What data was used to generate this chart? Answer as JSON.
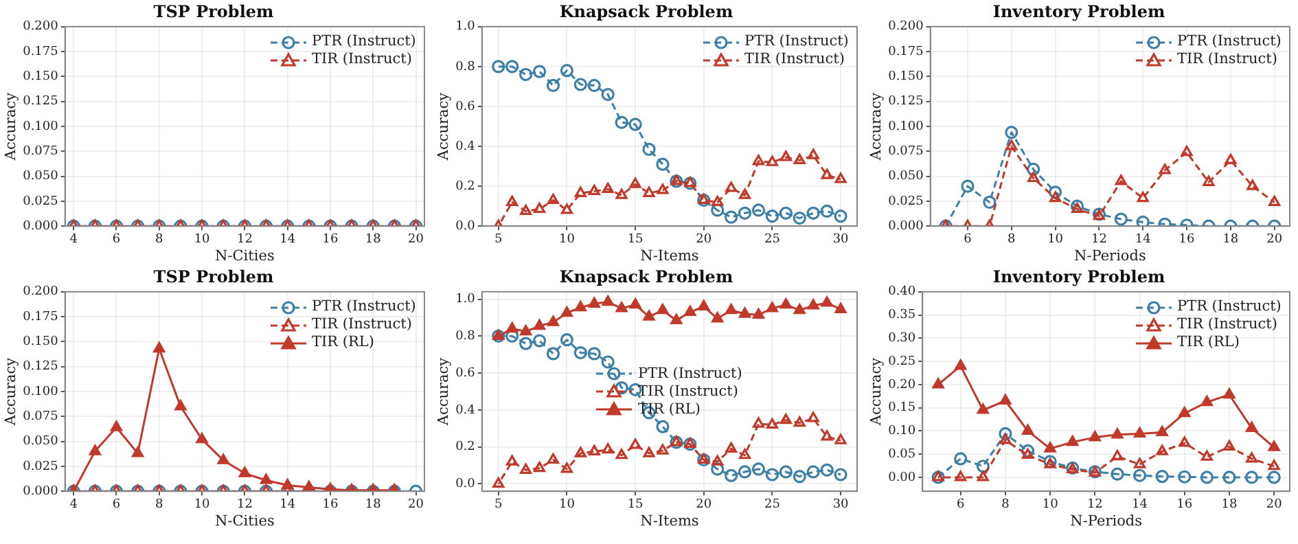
{
  "chart_data": [
    {
      "type": "line",
      "title": "TSP Problem",
      "xlabel": "N-Cities",
      "ylabel": "Accuracy",
      "xlim": [
        3.6,
        20.4
      ],
      "xticks": [
        4,
        6,
        8,
        10,
        12,
        14,
        16,
        18,
        20
      ],
      "ylim": [
        0,
        0.2
      ],
      "yticks": [
        {
          "value": 0,
          "label": "0.000"
        },
        {
          "value": 0.025,
          "label": "0.025"
        },
        {
          "value": 0.05,
          "label": "0.050"
        },
        {
          "value": 0.075,
          "label": "0.075"
        },
        {
          "value": 0.1,
          "label": "0.100"
        },
        {
          "value": 0.125,
          "label": "0.125"
        },
        {
          "value": 0.15,
          "label": "0.150"
        },
        {
          "value": 0.175,
          "label": "0.175"
        },
        {
          "value": 0.2,
          "label": "0.200"
        }
      ],
      "grid": true,
      "legend": "top right",
      "x": [
        4,
        5,
        6,
        7,
        8,
        9,
        10,
        11,
        12,
        13,
        14,
        15,
        16,
        17,
        18,
        19,
        20
      ],
      "series": [
        {
          "name": "PTR (Instruct)",
          "color": "#3d7fa6",
          "marker": "circle",
          "line_style": "dashed",
          "values": [
            0,
            0,
            0,
            0,
            0,
            0,
            0,
            0,
            0,
            0,
            0,
            0,
            0,
            0,
            0,
            0,
            0
          ]
        },
        {
          "name": "TIR (Instruct)",
          "color": "#c0392b",
          "marker": "triangle",
          "line_style": "dashed",
          "values": [
            0,
            0,
            0,
            0,
            0,
            0,
            0,
            0,
            0,
            0,
            0,
            0,
            0,
            0,
            0,
            0,
            0
          ]
        }
      ]
    },
    {
      "type": "line",
      "title": "Knapsack Problem",
      "xlabel": "N-Items",
      "ylabel": "Accuracy",
      "xlim": [
        3.8,
        31.2
      ],
      "xticks": [
        5,
        10,
        15,
        20,
        25,
        30
      ],
      "ylim": [
        0,
        1
      ],
      "yticks": [
        {
          "value": 0,
          "label": "0.0"
        },
        {
          "value": 0.2,
          "label": "0.2"
        },
        {
          "value": 0.4,
          "label": "0.4"
        },
        {
          "value": 0.6,
          "label": "0.6"
        },
        {
          "value": 0.8,
          "label": "0.8"
        },
        {
          "value": 1,
          "label": "1.0"
        }
      ],
      "grid": true,
      "legend": "top right",
      "x": [
        5,
        6,
        7,
        8,
        9,
        10,
        11,
        12,
        13,
        14,
        15,
        16,
        17,
        18,
        19,
        20,
        21,
        22,
        23,
        24,
        25,
        26,
        27,
        28,
        29,
        30
      ],
      "series": [
        {
          "name": "PTR (Instruct)",
          "color": "#3d7fa6",
          "marker": "circle",
          "line_style": "dashed",
          "values": [
            0.8,
            0.8,
            0.76,
            0.775,
            0.705,
            0.78,
            0.71,
            0.705,
            0.66,
            0.52,
            0.51,
            0.385,
            0.31,
            0.225,
            0.215,
            0.13,
            0.08,
            0.045,
            0.065,
            0.08,
            0.05,
            0.065,
            0.04,
            0.065,
            0.075,
            0.05
          ]
        },
        {
          "name": "TIR (Instruct)",
          "color": "#c0392b",
          "marker": "triangle",
          "line_style": "dashed",
          "values": [
            0,
            0.12,
            0.075,
            0.085,
            0.13,
            0.08,
            0.165,
            0.175,
            0.185,
            0.155,
            0.21,
            0.165,
            0.18,
            0.225,
            0.215,
            0.13,
            0.12,
            0.19,
            0.155,
            0.325,
            0.32,
            0.345,
            0.33,
            0.355,
            0.255,
            0.235
          ]
        }
      ]
    },
    {
      "type": "line",
      "title": "Inventory Problem",
      "xlabel": "N-Periods",
      "ylabel": "Accuracy",
      "xlim": [
        4.3,
        20.7
      ],
      "xticks": [
        6,
        8,
        10,
        12,
        14,
        16,
        18,
        20
      ],
      "ylim": [
        0,
        0.2
      ],
      "yticks": [
        {
          "value": 0,
          "label": "0.000"
        },
        {
          "value": 0.025,
          "label": "0.025"
        },
        {
          "value": 0.05,
          "label": "0.050"
        },
        {
          "value": 0.075,
          "label": "0.075"
        },
        {
          "value": 0.1,
          "label": "0.100"
        },
        {
          "value": 0.125,
          "label": "0.125"
        },
        {
          "value": 0.15,
          "label": "0.150"
        },
        {
          "value": 0.175,
          "label": "0.175"
        },
        {
          "value": 0.2,
          "label": "0.200"
        }
      ],
      "grid": true,
      "legend": "top right",
      "x": [
        5,
        6,
        7,
        8,
        9,
        10,
        11,
        12,
        13,
        14,
        15,
        16,
        17,
        18,
        19,
        20
      ],
      "series": [
        {
          "name": "PTR (Instruct)",
          "color": "#3d7fa6",
          "marker": "circle",
          "line_style": "dashed",
          "values": [
            0,
            0.04,
            0.024,
            0.094,
            0.057,
            0.034,
            0.02,
            0.012,
            0.007,
            0.004,
            0.002,
            0.001,
            0,
            0,
            0,
            0
          ]
        },
        {
          "name": "TIR (Instruct)",
          "color": "#c0392b",
          "marker": "triangle",
          "line_style": "dashed",
          "values": [
            0,
            0,
            0,
            0.08,
            0.048,
            0.028,
            0.017,
            0.01,
            0.045,
            0.028,
            0.056,
            0.074,
            0.044,
            0.066,
            0.04,
            0.024
          ]
        }
      ]
    },
    {
      "type": "line",
      "title": "TSP Problem",
      "xlabel": "N-Cities",
      "ylabel": "Accuracy",
      "xlim": [
        3.6,
        20.4
      ],
      "xticks": [
        4,
        6,
        8,
        10,
        12,
        14,
        16,
        18,
        20
      ],
      "ylim": [
        0,
        0.2
      ],
      "yticks": [
        {
          "value": 0,
          "label": "0.000"
        },
        {
          "value": 0.025,
          "label": "0.025"
        },
        {
          "value": 0.05,
          "label": "0.050"
        },
        {
          "value": 0.075,
          "label": "0.075"
        },
        {
          "value": 0.1,
          "label": "0.100"
        },
        {
          "value": 0.125,
          "label": "0.125"
        },
        {
          "value": 0.15,
          "label": "0.150"
        },
        {
          "value": 0.175,
          "label": "0.175"
        },
        {
          "value": 0.2,
          "label": "0.200"
        }
      ],
      "grid": true,
      "legend": "top right",
      "x": [
        4,
        5,
        6,
        7,
        8,
        9,
        10,
        11,
        12,
        13,
        14,
        15,
        16,
        17,
        18,
        19,
        20
      ],
      "series": [
        {
          "name": "PTR (Instruct)",
          "color": "#3d7fa6",
          "marker": "circle",
          "line_style": "dashed",
          "values": [
            0,
            0,
            0,
            0,
            0,
            0,
            0,
            0,
            0,
            0,
            0,
            0,
            0,
            0,
            0,
            0,
            0
          ]
        },
        {
          "name": "TIR (Instruct)",
          "color": "#c0392b",
          "marker": "triangle",
          "line_style": "dashed",
          "values": [
            0,
            0,
            0,
            0,
            0,
            0,
            0,
            0,
            0,
            0,
            0,
            0,
            0,
            0,
            0,
            0,
            null
          ]
        },
        {
          "name": "TIR (RL)",
          "color": "#c0392b",
          "marker": "triangle",
          "line_style": "solid",
          "values": [
            0,
            0.04,
            0.064,
            0.038,
            0.143,
            0.085,
            0.052,
            0.031,
            0.018,
            0.011,
            0.006,
            0.004,
            0.002,
            0.001,
            0.001,
            0.001,
            null
          ]
        }
      ]
    },
    {
      "type": "line",
      "title": "Knapsack Problem",
      "xlabel": "N-Items",
      "ylabel": "Accuracy",
      "xlim": [
        3.8,
        31.2
      ],
      "xticks": [
        5,
        10,
        15,
        20,
        25,
        30
      ],
      "ylim": [
        -0.04,
        1.04
      ],
      "yticks": [
        {
          "value": 0,
          "label": "0.0"
        },
        {
          "value": 0.2,
          "label": "0.2"
        },
        {
          "value": 0.4,
          "label": "0.4"
        },
        {
          "value": 0.6,
          "label": "0.6"
        },
        {
          "value": 0.8,
          "label": "0.8"
        },
        {
          "value": 1,
          "label": "1.0"
        }
      ],
      "grid": true,
      "legend": "center",
      "x": [
        5,
        6,
        7,
        8,
        9,
        10,
        11,
        12,
        13,
        14,
        15,
        16,
        17,
        18,
        19,
        20,
        21,
        22,
        23,
        24,
        25,
        26,
        27,
        28,
        29,
        30
      ],
      "series": [
        {
          "name": "PTR (Instruct)",
          "color": "#3d7fa6",
          "marker": "circle",
          "line_style": "dashed",
          "values": [
            0.8,
            0.8,
            0.76,
            0.775,
            0.705,
            0.78,
            0.71,
            0.705,
            0.66,
            0.52,
            0.51,
            0.385,
            0.31,
            0.225,
            0.215,
            0.13,
            0.08,
            0.045,
            0.065,
            0.08,
            0.05,
            0.065,
            0.04,
            0.065,
            0.075,
            0.05
          ]
        },
        {
          "name": "TIR (Instruct)",
          "color": "#c0392b",
          "marker": "triangle",
          "line_style": "dashed",
          "values": [
            0,
            0.12,
            0.075,
            0.085,
            0.13,
            0.08,
            0.165,
            0.175,
            0.185,
            0.155,
            0.21,
            0.165,
            0.18,
            0.225,
            0.215,
            0.13,
            0.12,
            0.19,
            0.155,
            0.325,
            0.32,
            0.345,
            0.33,
            0.355,
            0.255,
            0.235
          ]
        },
        {
          "name": "TIR (RL)",
          "color": "#c0392b",
          "marker": "triangle",
          "line_style": "solid",
          "values": [
            0.8,
            0.84,
            0.825,
            0.855,
            0.875,
            0.925,
            0.955,
            0.975,
            0.985,
            0.95,
            0.97,
            0.905,
            0.94,
            0.885,
            0.93,
            0.96,
            0.895,
            0.94,
            0.92,
            0.915,
            0.95,
            0.97,
            0.94,
            0.965,
            0.98,
            0.945
          ]
        }
      ]
    },
    {
      "type": "line",
      "title": "Inventory Problem",
      "xlabel": "N-Periods",
      "ylabel": "Accuracy",
      "xlim": [
        4.3,
        20.7
      ],
      "xticks": [
        6,
        8,
        10,
        12,
        14,
        16,
        18,
        20
      ],
      "ylim": [
        -0.03,
        0.4
      ],
      "yticks": [
        {
          "value": 0,
          "label": "0.00"
        },
        {
          "value": 0.05,
          "label": "0.05"
        },
        {
          "value": 0.1,
          "label": "0.10"
        },
        {
          "value": 0.15,
          "label": "0.15"
        },
        {
          "value": 0.2,
          "label": "0.20"
        },
        {
          "value": 0.25,
          "label": "0.25"
        },
        {
          "value": 0.3,
          "label": "0.30"
        },
        {
          "value": 0.35,
          "label": "0.35"
        },
        {
          "value": 0.4,
          "label": "0.40"
        }
      ],
      "grid": true,
      "legend": "top right",
      "x": [
        5,
        6,
        7,
        8,
        9,
        10,
        11,
        12,
        13,
        14,
        15,
        16,
        17,
        18,
        19,
        20
      ],
      "series": [
        {
          "name": "PTR (Instruct)",
          "color": "#3d7fa6",
          "marker": "circle",
          "line_style": "dashed",
          "values": [
            0,
            0.04,
            0.024,
            0.094,
            0.057,
            0.034,
            0.02,
            0.012,
            0.007,
            0.004,
            0.002,
            0.001,
            0,
            0,
            0,
            0
          ]
        },
        {
          "name": "TIR (Instruct)",
          "color": "#c0392b",
          "marker": "triangle",
          "line_style": "dashed",
          "values": [
            0,
            0,
            0,
            0.08,
            0.048,
            0.028,
            0.017,
            0.01,
            0.045,
            0.028,
            0.056,
            0.074,
            0.044,
            0.066,
            0.04,
            0.024
          ]
        },
        {
          "name": "TIR (RL)",
          "color": "#c0392b",
          "marker": "triangle",
          "line_style": "solid",
          "values": [
            0.2,
            0.24,
            0.145,
            0.165,
            0.1,
            0.062,
            0.076,
            0.086,
            0.092,
            0.094,
            0.097,
            0.138,
            0.162,
            0.178,
            0.106,
            0.065
          ]
        }
      ]
    }
  ]
}
